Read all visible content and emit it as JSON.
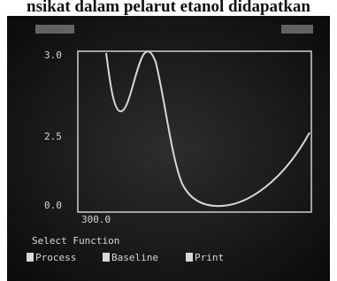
{
  "caption": "nsikat dalam pelarut etanol didapatkan",
  "screen": {
    "y_labels": [
      "3.0",
      "2.5",
      "0.0"
    ],
    "x_labels": [
      "300.0"
    ],
    "prompt": "Select Function",
    "menu": [
      "Process",
      "Baseline",
      "Print"
    ]
  }
}
